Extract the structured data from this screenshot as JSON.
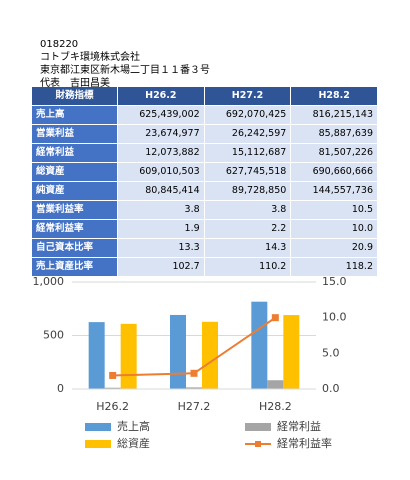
{
  "header": {
    "code": "018220",
    "company": "コトブキ環境株式会社",
    "address": "東京都江東区新木場二丁目１１番３号",
    "representative": "代表　吉田昌美"
  },
  "table": {
    "columns": [
      "財務指標",
      "H26.2",
      "H27.2",
      "H28.2"
    ],
    "rows": [
      [
        "売上高",
        "625,439,002",
        "692,070,425",
        "816,215,143"
      ],
      [
        "営業利益",
        "23,674,977",
        "26,242,597",
        "85,887,639"
      ],
      [
        "経常利益",
        "12,073,882",
        "15,112,687",
        "81,507,226"
      ],
      [
        "総資産",
        "609,010,503",
        "627,745,518",
        "690,660,666"
      ],
      [
        "純資産",
        "80,845,414",
        "89,728,850",
        "144,557,736"
      ],
      [
        "営業利益率",
        "3.8",
        "3.8",
        "10.5"
      ],
      [
        "経常利益率",
        "1.9",
        "2.2",
        "10.0"
      ],
      [
        "自己資本比率",
        "13.3",
        "14.3",
        "20.9"
      ],
      [
        "売上資産比率",
        "102.7",
        "110.2",
        "118.2"
      ]
    ]
  },
  "chart_data": {
    "type": "bar",
    "categories": [
      "H26.2",
      "H27.2",
      "H28.2"
    ],
    "series": [
      {
        "name": "売上高",
        "color": "#5b9bd5",
        "values": [
          625,
          692,
          816
        ]
      },
      {
        "name": "経常利益",
        "color": "#a5a5a5",
        "values": [
          12,
          15,
          82
        ]
      },
      {
        "name": "総資産",
        "color": "#ffc000",
        "values": [
          609,
          628,
          691
        ]
      },
      {
        "name": "経常利益率",
        "color": "#ed7d31",
        "values": [
          1.9,
          2.2,
          10.0
        ],
        "axis": "y2",
        "type": "line"
      }
    ],
    "ylim": [
      0,
      1000
    ],
    "yticks": [
      0,
      500,
      {
        "value": 1000,
        "label": "1,000"
      }
    ],
    "y2lim": [
      0,
      15
    ],
    "y2ticks": [
      {
        "value": 0,
        "label": "0.0"
      },
      {
        "value": 5,
        "label": "5.0"
      },
      {
        "value": 10,
        "label": "10.0"
      },
      {
        "value": 15,
        "label": "15.0"
      }
    ],
    "grid": true
  }
}
